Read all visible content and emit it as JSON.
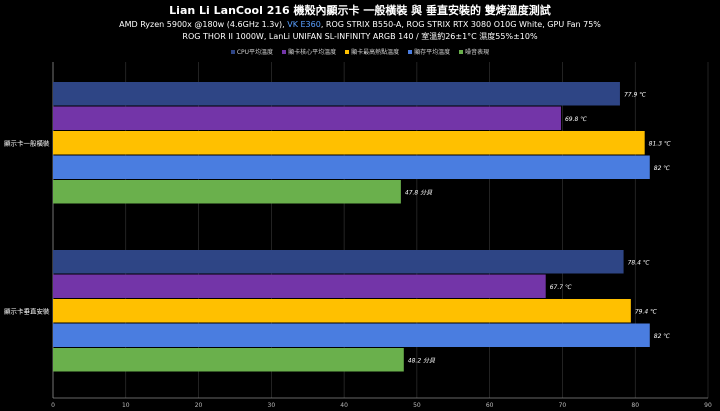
{
  "title": "Lian Li LanCool 216 機殼內顯示卡 一般橫裝 與 垂直安裝的 雙烤溫度測試",
  "subtitle_line1_a": "AMD Ryzen 5900x @180w (4.6GHz 1.3v), ",
  "subtitle_line1_highlight": "VK E360",
  "subtitle_line1_b": ", ROG STRIX B550-A, ROG STRIX RTX 3080 O10G White, GPU Fan 75%",
  "subtitle_line2": "ROG THOR II 1000W, LanLi UNIFAN SL-INFINITY ARGB 140 / 室溫約26±1°C 濕度55%±10%",
  "colors": {
    "background": "#000000",
    "cpu": "#2e4585",
    "gpu_core": "#7335a8",
    "gpu_hotspot": "#ffc000",
    "vram": "#4a7de0",
    "noise": "#6ab04c",
    "highlight": "#5aa0ff"
  },
  "chart_data": {
    "type": "bar",
    "orientation": "horizontal",
    "categories": [
      "顯示卡一般橫裝",
      "顯示卡垂直安裝"
    ],
    "series": [
      {
        "name": "CPU平均溫度",
        "values": [
          77.9,
          78.4
        ],
        "labels": [
          "77.9 ℃",
          "78.4 ℃"
        ],
        "color": "#2e4585"
      },
      {
        "name": "顯卡核心平均溫度",
        "values": [
          69.8,
          67.7
        ],
        "labels": [
          "69.8 ℃",
          "67.7 ℃"
        ],
        "color": "#7335a8"
      },
      {
        "name": "顯卡最高熱點溫度",
        "values": [
          81.3,
          79.4
        ],
        "labels": [
          "81.3 ℃",
          "79.4 ℃"
        ],
        "color": "#ffc000"
      },
      {
        "name": "顯存平均溫度",
        "values": [
          82,
          82
        ],
        "labels": [
          "82 ℃",
          "82 ℃"
        ],
        "color": "#4a7de0"
      },
      {
        "name": "噪音表現",
        "values": [
          47.8,
          48.2
        ],
        "labels": [
          "47.8 分貝",
          "48.2 分貝"
        ],
        "color": "#6ab04c"
      }
    ],
    "xlim": [
      0,
      90
    ],
    "xticks": [
      0,
      10,
      20,
      30,
      40,
      50,
      60,
      70,
      80,
      90
    ],
    "grid": true,
    "legend_position": "top"
  }
}
